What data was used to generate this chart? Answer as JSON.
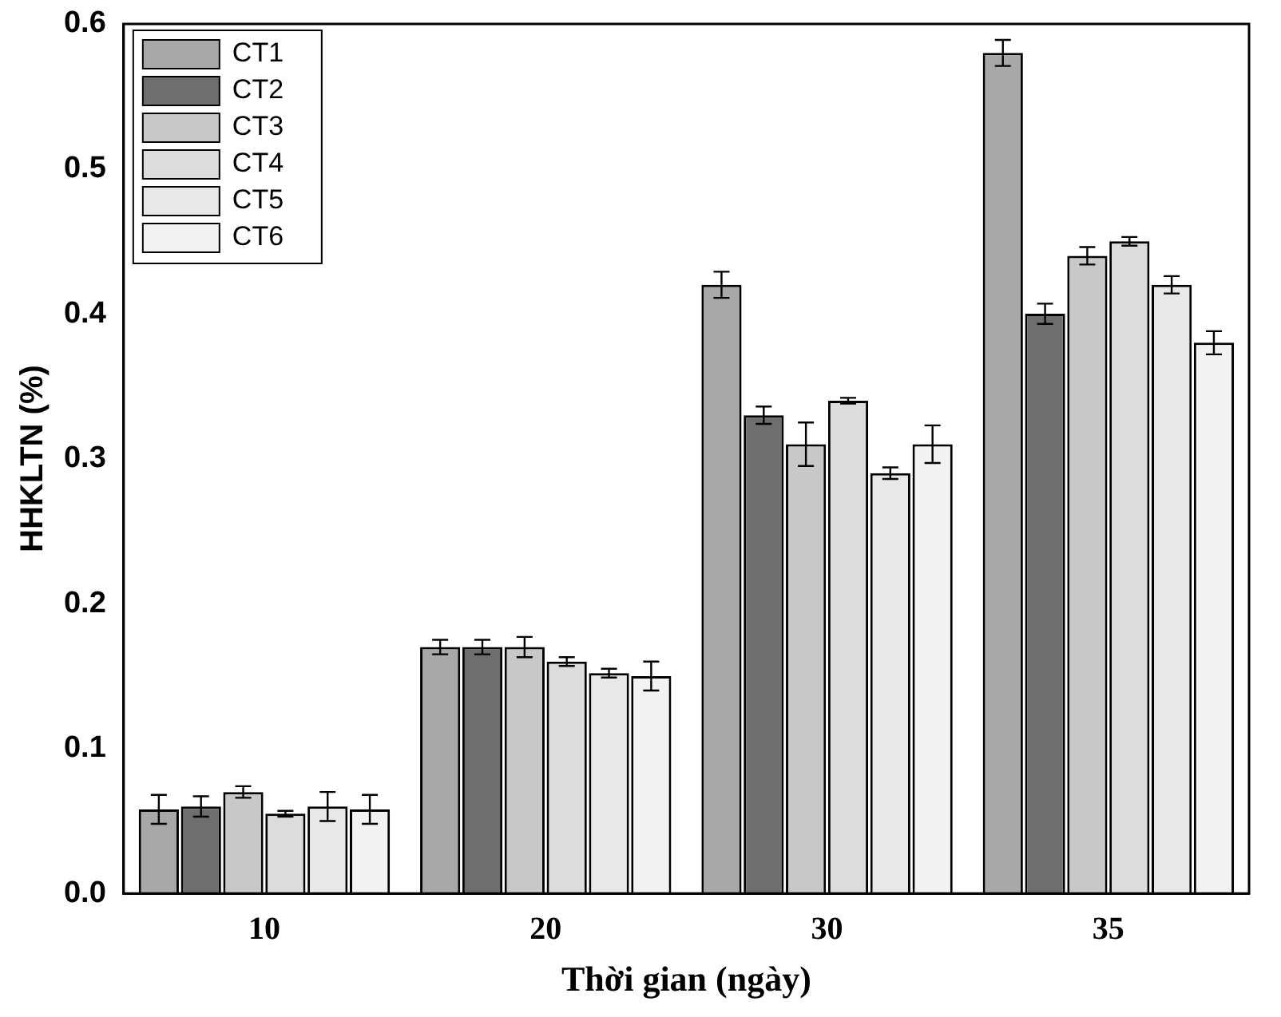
{
  "chart_data": {
    "type": "bar",
    "xlabel": "Thời gian (ngày)",
    "ylabel": "HHKLTN (%)",
    "categories": [
      "10",
      "20",
      "30",
      "35"
    ],
    "series": [
      {
        "name": "CT1",
        "color": "#a8a8a8",
        "values": [
          0.058,
          0.17,
          0.42,
          0.58
        ],
        "errors": [
          0.01,
          0.005,
          0.009,
          0.009
        ]
      },
      {
        "name": "CT2",
        "color": "#6e6e6e",
        "values": [
          0.06,
          0.17,
          0.33,
          0.4
        ],
        "errors": [
          0.007,
          0.005,
          0.006,
          0.007
        ]
      },
      {
        "name": "CT3",
        "color": "#c8c8c8",
        "values": [
          0.07,
          0.17,
          0.31,
          0.44
        ],
        "errors": [
          0.004,
          0.007,
          0.015,
          0.006
        ]
      },
      {
        "name": "CT4",
        "color": "#dcdcdc",
        "values": [
          0.055,
          0.16,
          0.34,
          0.45
        ],
        "errors": [
          0.002,
          0.003,
          0.002,
          0.003
        ]
      },
      {
        "name": "CT5",
        "color": "#e8e8e8",
        "values": [
          0.06,
          0.152,
          0.29,
          0.42
        ],
        "errors": [
          0.01,
          0.003,
          0.004,
          0.006
        ]
      },
      {
        "name": "CT6",
        "color": "#f2f2f2",
        "values": [
          0.058,
          0.15,
          0.31,
          0.38
        ],
        "errors": [
          0.01,
          0.01,
          0.013,
          0.008
        ]
      }
    ],
    "ylim": [
      0,
      0.6
    ],
    "yticks": [
      {
        "value": 0,
        "label": "0.0"
      },
      {
        "value": 0.1,
        "label": "0.1"
      },
      {
        "value": 0.2,
        "label": "0.2"
      },
      {
        "value": 0.3,
        "label": "0.3"
      },
      {
        "value": 0.4,
        "label": "0.4"
      },
      {
        "value": 0.5,
        "label": "0.5"
      },
      {
        "value": 0.6,
        "label": "0.6"
      }
    ],
    "grid": false,
    "legend": "top left"
  }
}
